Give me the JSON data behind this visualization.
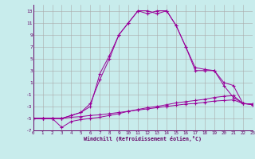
{
  "xlabel": "Windchill (Refroidissement éolien,°C)",
  "bg_color": "#c8ecec",
  "line_color": "#990099",
  "grid_color": "#aaaaaa",
  "xlim": [
    0,
    23
  ],
  "ylim": [
    -7,
    14
  ],
  "yticks": [
    -7,
    -5,
    -3,
    -1,
    1,
    3,
    5,
    7,
    9,
    11,
    13
  ],
  "xticks": [
    0,
    1,
    2,
    3,
    4,
    5,
    6,
    7,
    8,
    9,
    10,
    11,
    12,
    13,
    14,
    15,
    16,
    17,
    18,
    19,
    20,
    21,
    22,
    23
  ],
  "lines": [
    {
      "x": [
        0,
        1,
        2,
        3,
        4,
        5,
        6,
        7,
        8,
        9,
        10,
        11,
        12,
        13,
        14,
        15,
        16,
        17,
        18,
        19,
        20,
        21,
        22,
        23
      ],
      "y": [
        -5,
        -5,
        -5,
        -5,
        -4.8,
        -4.7,
        -4.5,
        -4.4,
        -4.2,
        -4.0,
        -3.8,
        -3.6,
        -3.4,
        -3.2,
        -3.0,
        -2.8,
        -2.6,
        -2.5,
        -2.3,
        -2.1,
        -2.0,
        -1.9,
        -2.5,
        -2.6
      ]
    },
    {
      "x": [
        0,
        1,
        2,
        3,
        4,
        5,
        6,
        7,
        8,
        9,
        10,
        11,
        12,
        13,
        14,
        15,
        16,
        17,
        18,
        19,
        20,
        21,
        22,
        23
      ],
      "y": [
        -5,
        -5,
        -5,
        -6.5,
        -5.5,
        -5.2,
        -5.0,
        -4.8,
        -4.5,
        -4.2,
        -3.8,
        -3.5,
        -3.2,
        -3.0,
        -2.7,
        -2.4,
        -2.2,
        -2.0,
        -1.8,
        -1.5,
        -1.3,
        -1.2,
        -2.5,
        -2.6
      ]
    },
    {
      "x": [
        0,
        1,
        2,
        3,
        4,
        5,
        6,
        7,
        8,
        9,
        10,
        11,
        12,
        13,
        14,
        15,
        16,
        17,
        18,
        19,
        20,
        21,
        22,
        23
      ],
      "y": [
        -5,
        -5,
        -5,
        -5,
        -4.5,
        -4.0,
        -3.0,
        2.5,
        5.5,
        9.0,
        11.0,
        13.0,
        12.5,
        13.0,
        13.0,
        10.5,
        7.0,
        3.5,
        3.2,
        3.0,
        0.5,
        -1.5,
        -2.5,
        -2.7
      ]
    },
    {
      "x": [
        0,
        1,
        2,
        3,
        4,
        5,
        6,
        7,
        8,
        9,
        10,
        11,
        12,
        13,
        14,
        15,
        16,
        17,
        18,
        19,
        20,
        21,
        22,
        23
      ],
      "y": [
        -5,
        -5,
        -5,
        -5,
        -4.5,
        -4.0,
        -2.5,
        1.5,
        5.0,
        9.0,
        11.0,
        13.0,
        13.0,
        12.5,
        13.0,
        10.5,
        7.0,
        3.0,
        3.0,
        3.0,
        1.0,
        0.5,
        -2.5,
        -2.7
      ]
    }
  ]
}
